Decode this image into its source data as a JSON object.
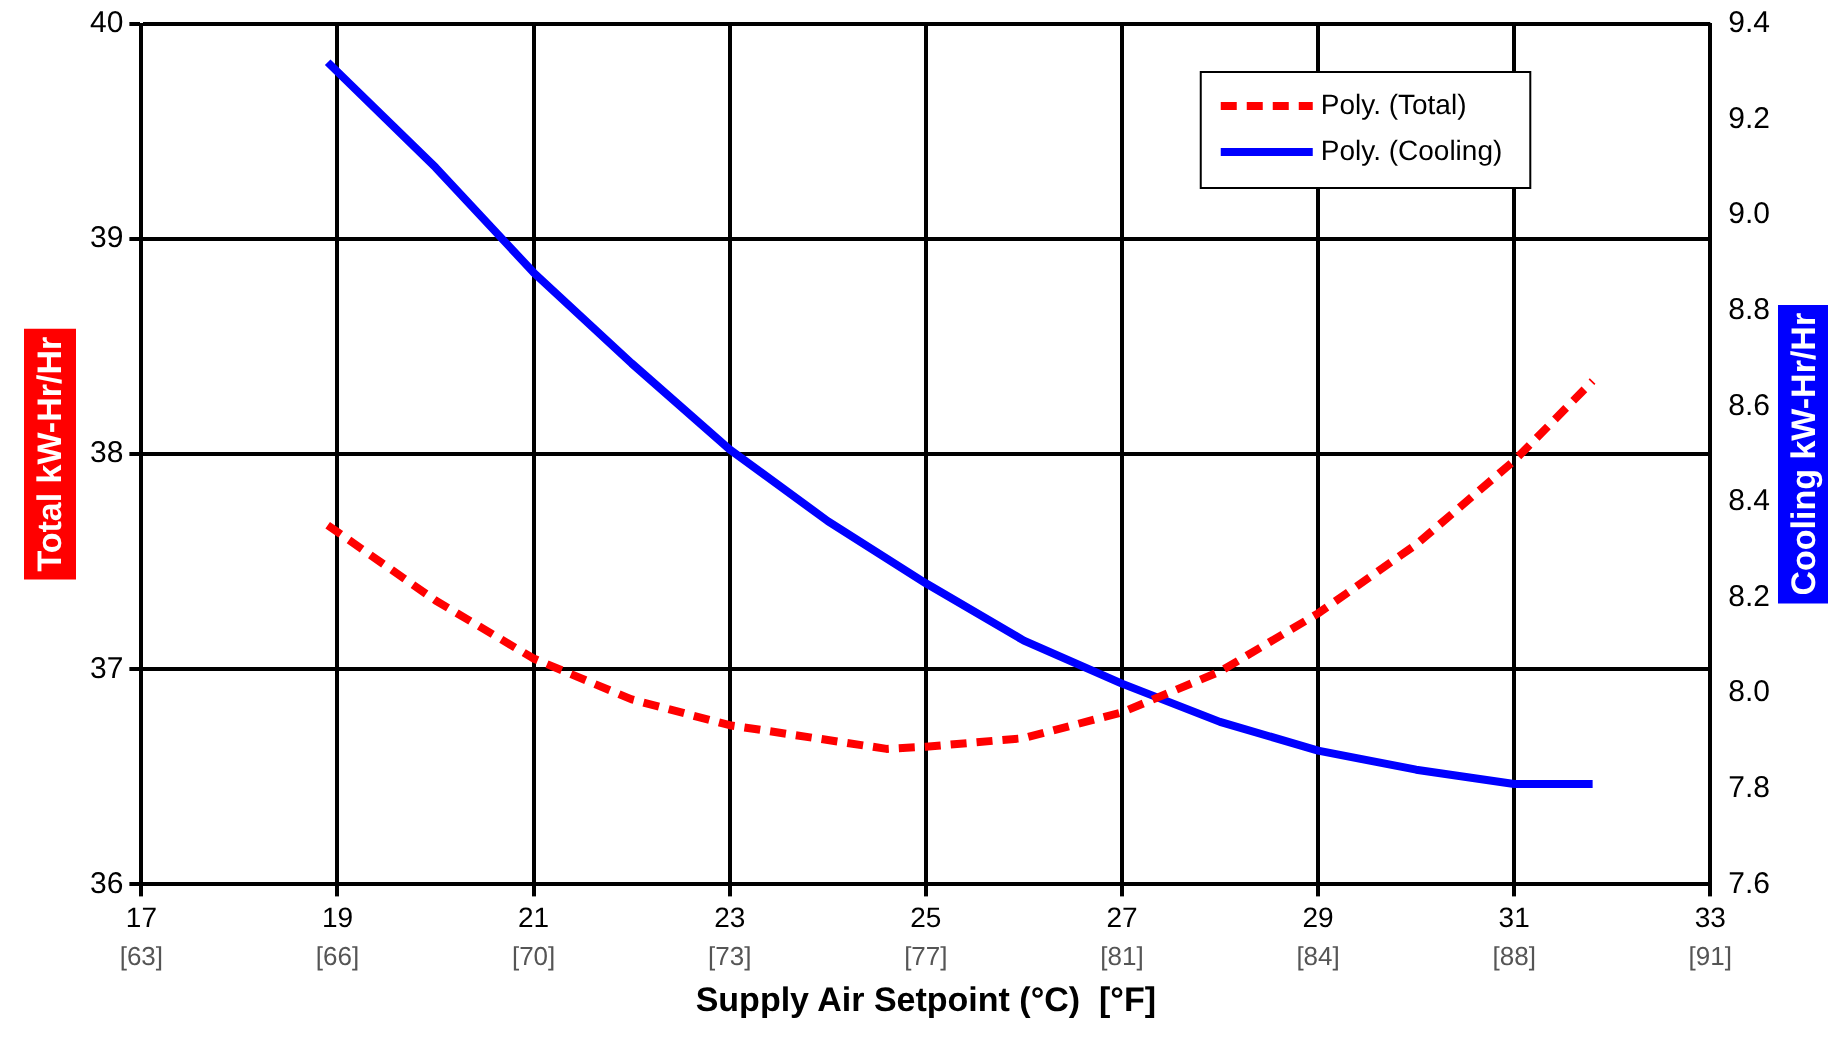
{
  "chart_data": {
    "type": "line",
    "xlabel": "Supply Air Setpoint (°C)  [°F]",
    "ylabel": "Total kW-Hr/Hr",
    "y2label": "Cooling kW-Hr/Hr",
    "xlim": [
      17,
      33
    ],
    "xticks": [
      17,
      19,
      21,
      23,
      25,
      27,
      29,
      31,
      33
    ],
    "x2lim": [
      62.6,
      91.4
    ],
    "x2ticks": [
      {
        "value": 62.6,
        "label": "[63]"
      },
      {
        "value": 66.2,
        "label": "[66]"
      },
      {
        "value": 69.8,
        "label": "[70]"
      },
      {
        "value": 73.4,
        "label": "[73]"
      },
      {
        "value": 77,
        "label": "[77]"
      },
      {
        "value": 80.6,
        "label": "[81]"
      },
      {
        "value": 84.2,
        "label": "[84]"
      },
      {
        "value": 87.8,
        "label": "[88]"
      },
      {
        "value": 91.4,
        "label": "[91]"
      }
    ],
    "ylim": [
      36,
      40
    ],
    "yticks": [
      36,
      37,
      38,
      39,
      40
    ],
    "y2lim": [
      7.6,
      9.4
    ],
    "y2ticks": [
      7.6,
      7.8,
      {
        "value": 8.0,
        "label": "8.0"
      },
      8.2,
      8.4,
      8.6,
      8.8,
      {
        "value": 9.0,
        "label": "9.0"
      },
      9.2,
      9.4
    ],
    "grid": true,
    "legend": "top right",
    "marker": "none",
    "series": [
      {
        "name": "Poly. (Total)",
        "color": "#ff0000",
        "line_style": "dashed",
        "x": [
          18.9,
          20,
          21,
          22,
          23,
          24.6,
          25,
          26,
          27,
          28,
          29,
          30,
          31,
          31.8
        ],
        "values": [
          37.67,
          37.32,
          37.05,
          36.86,
          36.74,
          36.63,
          36.64,
          36.68,
          36.8,
          36.99,
          37.26,
          37.58,
          37.97,
          38.34
        ]
      },
      {
        "name": "Poly. (Cooling)",
        "color": "#0000ff",
        "line_style": "solid",
        "axis": "y2",
        "x": [
          18.9,
          20,
          21,
          22,
          23,
          24,
          25,
          26,
          27,
          28,
          29,
          30,
          31,
          31.8
        ],
        "values": [
          9.32,
          9.1,
          8.88,
          8.69,
          8.51,
          8.36,
          8.23,
          8.11,
          8.02,
          7.94,
          7.88,
          7.84,
          7.81,
          7.81
        ]
      }
    ]
  }
}
